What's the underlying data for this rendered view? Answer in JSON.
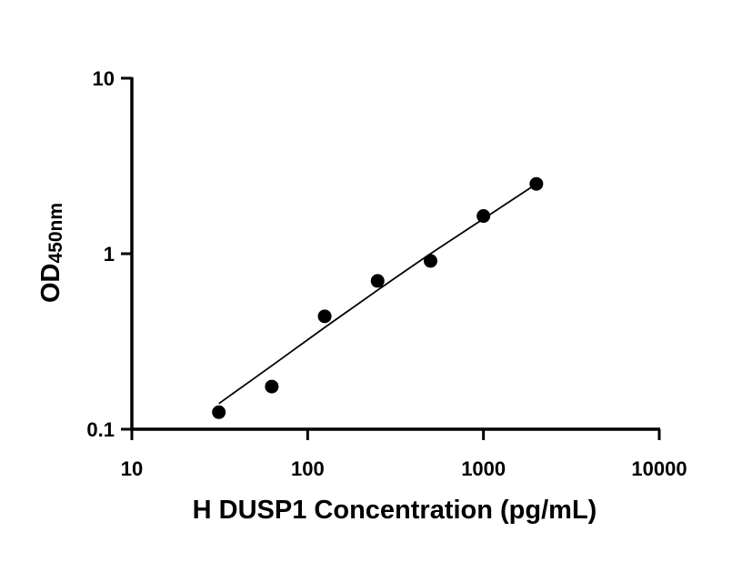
{
  "chart_data": {
    "type": "scatter",
    "title": "",
    "xlabel": "H DUSP1 Concentration (pg/mL)",
    "ylabel": {
      "main": "OD",
      "subscript": "450nm"
    },
    "xscale": "log",
    "yscale": "log",
    "xlim": [
      10,
      10000
    ],
    "ylim": [
      0.1,
      10
    ],
    "xticks": [
      10,
      100,
      1000,
      10000
    ],
    "xtick_labels": [
      "10",
      "100",
      "1000",
      "10000"
    ],
    "yticks": [
      0.1,
      1,
      10
    ],
    "ytick_labels": [
      "0.1",
      "1",
      "10"
    ],
    "grid": false,
    "legend": "none",
    "series": [
      {
        "x": [
          31.25,
          62.5,
          125,
          250,
          500,
          1000,
          2000
        ],
        "y": [
          0.125,
          0.175,
          0.44,
          0.7,
          0.91,
          1.64,
          2.5
        ]
      }
    ],
    "fit_curve": {
      "x": [
        31.25,
        62.5,
        125,
        250,
        500,
        1000,
        2000
      ],
      "y": [
        0.14,
        0.23,
        0.38,
        0.62,
        1.0,
        1.58,
        2.5
      ]
    },
    "marker_color": "#000000",
    "line_color": "#000000"
  }
}
